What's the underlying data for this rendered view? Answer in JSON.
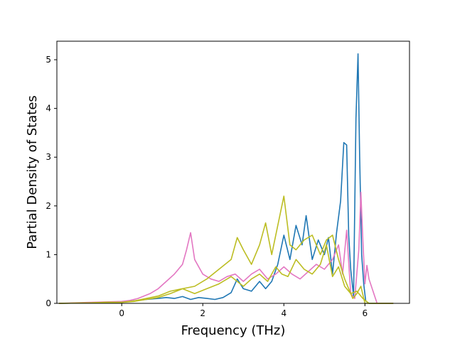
{
  "chart_data": {
    "type": "line",
    "title": "",
    "xlabel": "Frequency (THz)",
    "ylabel": "Partial Density of States",
    "xlim": [
      -1.6,
      7.1
    ],
    "ylim": [
      0,
      5.38
    ],
    "xticks": [
      0,
      2,
      4,
      6
    ],
    "xtick_labels": [
      "0",
      "2",
      "4",
      "6"
    ],
    "yticks": [
      0,
      1,
      2,
      3,
      4,
      5
    ],
    "ytick_labels": [
      "0",
      "1",
      "2",
      "3",
      "4",
      "5"
    ],
    "grid": false,
    "legend": "none",
    "series": [
      {
        "color": "#1f77b4",
        "x": [
          -1.55,
          -0.8,
          -0.4,
          0.0,
          0.3,
          0.6,
          0.9,
          1.1,
          1.3,
          1.5,
          1.7,
          1.9,
          2.1,
          2.3,
          2.5,
          2.7,
          2.85,
          3.0,
          3.2,
          3.4,
          3.55,
          3.7,
          3.85,
          4.0,
          4.15,
          4.3,
          4.45,
          4.55,
          4.7,
          4.85,
          5.0,
          5.1,
          5.2,
          5.3,
          5.4,
          5.48,
          5.55,
          5.6,
          5.65,
          5.72,
          5.78,
          5.83,
          5.87,
          5.92,
          5.97,
          6.02,
          6.1,
          6.3,
          6.7
        ],
        "values": [
          0,
          0.01,
          0.02,
          0.02,
          0.05,
          0.08,
          0.1,
          0.12,
          0.1,
          0.14,
          0.08,
          0.12,
          0.1,
          0.08,
          0.12,
          0.22,
          0.5,
          0.3,
          0.25,
          0.45,
          0.3,
          0.45,
          0.8,
          1.4,
          0.9,
          1.6,
          1.2,
          1.8,
          0.9,
          1.3,
          1.0,
          1.35,
          0.6,
          1.45,
          2.1,
          3.3,
          3.25,
          1.4,
          0.7,
          0.15,
          3.8,
          5.12,
          3.0,
          1.0,
          0.4,
          0.05,
          0,
          0,
          0
        ]
      },
      {
        "color": "#e377c2",
        "x": [
          -1.55,
          -0.8,
          -0.4,
          0.0,
          0.2,
          0.4,
          0.7,
          0.9,
          1.1,
          1.3,
          1.5,
          1.6,
          1.7,
          1.8,
          2.0,
          2.2,
          2.4,
          2.6,
          2.8,
          3.0,
          3.2,
          3.4,
          3.6,
          3.8,
          4.0,
          4.2,
          4.4,
          4.6,
          4.8,
          5.0,
          5.2,
          5.35,
          5.45,
          5.55,
          5.65,
          5.75,
          5.85,
          5.9,
          5.95,
          6.0,
          6.05,
          6.1,
          6.3,
          6.7
        ],
        "values": [
          0,
          0.02,
          0.03,
          0.04,
          0.06,
          0.1,
          0.2,
          0.3,
          0.45,
          0.6,
          0.8,
          1.1,
          1.45,
          0.9,
          0.6,
          0.5,
          0.45,
          0.55,
          0.6,
          0.45,
          0.6,
          0.7,
          0.5,
          0.6,
          0.75,
          0.6,
          0.5,
          0.65,
          0.8,
          0.7,
          0.9,
          1.2,
          0.6,
          1.5,
          0.2,
          0.1,
          1.1,
          2.28,
          1.3,
          0.4,
          0.78,
          0.5,
          0,
          0
        ]
      },
      {
        "color": "#bcbd22",
        "x": [
          -1.55,
          -0.8,
          -0.4,
          0.0,
          0.3,
          0.6,
          0.9,
          1.2,
          1.5,
          1.8,
          2.1,
          2.4,
          2.7,
          2.85,
          3.0,
          3.2,
          3.4,
          3.55,
          3.7,
          3.9,
          4.0,
          4.15,
          4.3,
          4.5,
          4.7,
          4.9,
          5.05,
          5.2,
          5.35,
          5.5,
          5.6,
          5.7,
          5.8,
          5.9,
          6.0,
          6.3,
          6.7
        ],
        "values": [
          0,
          0.01,
          0.02,
          0.02,
          0.05,
          0.1,
          0.15,
          0.25,
          0.3,
          0.35,
          0.5,
          0.7,
          0.9,
          1.35,
          1.1,
          0.8,
          1.2,
          1.65,
          1.0,
          1.8,
          2.2,
          1.2,
          1.1,
          1.3,
          1.4,
          1.0,
          1.3,
          1.4,
          0.9,
          0.5,
          0.3,
          0.1,
          0.2,
          0.35,
          0,
          0,
          0
        ]
      },
      {
        "color": "#bcbd22",
        "x": [
          -1.55,
          -0.8,
          -0.4,
          0.0,
          0.3,
          0.6,
          0.9,
          1.2,
          1.5,
          1.8,
          2.1,
          2.4,
          2.7,
          3.0,
          3.2,
          3.4,
          3.6,
          3.8,
          3.95,
          4.1,
          4.3,
          4.5,
          4.7,
          4.9,
          5.05,
          5.2,
          5.35,
          5.5,
          5.65,
          5.8,
          5.95,
          6.1,
          6.3,
          6.7
        ],
        "values": [
          0,
          0.01,
          0.02,
          0.02,
          0.04,
          0.08,
          0.12,
          0.2,
          0.3,
          0.2,
          0.3,
          0.4,
          0.55,
          0.35,
          0.5,
          0.6,
          0.45,
          0.75,
          0.6,
          0.55,
          0.9,
          0.7,
          0.6,
          0.8,
          1.2,
          0.55,
          0.75,
          0.35,
          0.2,
          0.25,
          0.1,
          0,
          0,
          0
        ]
      }
    ]
  }
}
